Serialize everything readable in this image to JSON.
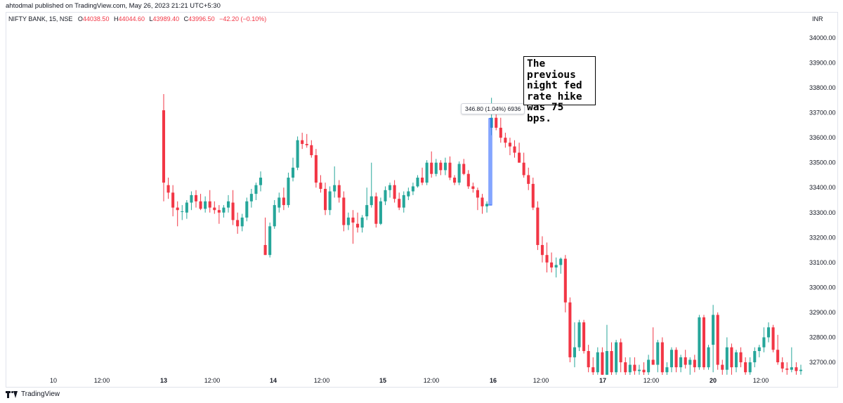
{
  "publisher_line": "ahtodmal published on TradingView.com, May 26, 2023 21:21 UTC+5:30",
  "legend": {
    "symbol": "NIFTY BANK, 15, NSE",
    "open_label": "O",
    "open": "44038.50",
    "high_label": "H",
    "high": "44044.60",
    "low_label": "L",
    "low": "43989.40",
    "close_label": "C",
    "close": "43996.50",
    "change": "−42.20 (−0.10%)"
  },
  "currency": "INR",
  "footer_brand": "TradingView",
  "annotation": {
    "lines": [
      "The previous",
      "night fed",
      "rate hike",
      "was 75 bps."
    ]
  },
  "measure": {
    "label": "346.80 (1.04%) 6936",
    "from": 33330,
    "to": 33677
  },
  "colors": {
    "up": "#26a69a",
    "down": "#f23645",
    "measure": "#2962ff"
  },
  "chart_data": {
    "type": "candlestick",
    "ylim": [
      32640,
      34150
    ],
    "y_ticks": [
      "34000.00",
      "33900.00",
      "33800.00",
      "33700.00",
      "33600.00",
      "33500.00",
      "33400.00",
      "33300.00",
      "33200.00",
      "33100.00",
      "33000.00",
      "32900.00",
      "32800.00",
      "32700.00"
    ],
    "x_ticks": [
      {
        "label": "10",
        "bold": false
      },
      {
        "label": "12:00",
        "bold": false
      },
      {
        "label": "13",
        "bold": true
      },
      {
        "label": "12:00",
        "bold": false
      },
      {
        "label": "14",
        "bold": true
      },
      {
        "label": "12:00",
        "bold": false
      },
      {
        "label": "15",
        "bold": true
      },
      {
        "label": "12:00",
        "bold": false
      },
      {
        "label": "16",
        "bold": true
      },
      {
        "label": "12:00",
        "bold": false
      },
      {
        "label": "17",
        "bold": true
      },
      {
        "label": "12:00",
        "bold": false
      },
      {
        "label": "20",
        "bold": true
      },
      {
        "label": "12:00",
        "bold": false
      }
    ],
    "candles": [
      {
        "o": 33710,
        "h": 33775,
        "l": 33345,
        "c": 33420
      },
      {
        "o": 33410,
        "h": 33440,
        "l": 33355,
        "c": 33380
      },
      {
        "o": 33380,
        "h": 33410,
        "l": 33285,
        "c": 33320
      },
      {
        "o": 33320,
        "h": 33345,
        "l": 33245,
        "c": 33310
      },
      {
        "o": 33305,
        "h": 33330,
        "l": 33270,
        "c": 33305
      },
      {
        "o": 33300,
        "h": 33350,
        "l": 33275,
        "c": 33340
      },
      {
        "o": 33340,
        "h": 33385,
        "l": 33310,
        "c": 33370
      },
      {
        "o": 33370,
        "h": 33390,
        "l": 33320,
        "c": 33345
      },
      {
        "o": 33345,
        "h": 33375,
        "l": 33310,
        "c": 33315
      },
      {
        "o": 33315,
        "h": 33365,
        "l": 33300,
        "c": 33345
      },
      {
        "o": 33345,
        "h": 33390,
        "l": 33300,
        "c": 33320
      },
      {
        "o": 33320,
        "h": 33345,
        "l": 33295,
        "c": 33310
      },
      {
        "o": 33310,
        "h": 33330,
        "l": 33255,
        "c": 33300
      },
      {
        "o": 33300,
        "h": 33330,
        "l": 33280,
        "c": 33320
      },
      {
        "o": 33320,
        "h": 33370,
        "l": 33300,
        "c": 33345
      },
      {
        "o": 33340,
        "h": 33390,
        "l": 33250,
        "c": 33270
      },
      {
        "o": 33270,
        "h": 33300,
        "l": 33215,
        "c": 33245
      },
      {
        "o": 33245,
        "h": 33295,
        "l": 33225,
        "c": 33280
      },
      {
        "o": 33280,
        "h": 33360,
        "l": 33265,
        "c": 33345
      },
      {
        "o": 33345,
        "h": 33395,
        "l": 33320,
        "c": 33375
      },
      {
        "o": 33375,
        "h": 33420,
        "l": 33350,
        "c": 33410
      },
      {
        "o": 33410,
        "h": 33465,
        "l": 33385,
        "c": 33440
      },
      {
        "o": 33170,
        "h": 33280,
        "l": 33130,
        "c": 33130
      },
      {
        "o": 33130,
        "h": 33260,
        "l": 33120,
        "c": 33245
      },
      {
        "o": 33245,
        "h": 33350,
        "l": 33235,
        "c": 33330
      },
      {
        "o": 33320,
        "h": 33380,
        "l": 33300,
        "c": 33360
      },
      {
        "o": 33360,
        "h": 33400,
        "l": 33310,
        "c": 33330
      },
      {
        "o": 33330,
        "h": 33460,
        "l": 33320,
        "c": 33440
      },
      {
        "o": 33440,
        "h": 33520,
        "l": 33425,
        "c": 33480
      },
      {
        "o": 33480,
        "h": 33605,
        "l": 33470,
        "c": 33590
      },
      {
        "o": 33590,
        "h": 33620,
        "l": 33555,
        "c": 33575
      },
      {
        "o": 33575,
        "h": 33615,
        "l": 33560,
        "c": 33570
      },
      {
        "o": 33570,
        "h": 33590,
        "l": 33520,
        "c": 33530
      },
      {
        "o": 33530,
        "h": 33555,
        "l": 33400,
        "c": 33420
      },
      {
        "o": 33420,
        "h": 33450,
        "l": 33380,
        "c": 33395
      },
      {
        "o": 33395,
        "h": 33420,
        "l": 33290,
        "c": 33310
      },
      {
        "o": 33310,
        "h": 33405,
        "l": 33290,
        "c": 33385
      },
      {
        "o": 33385,
        "h": 33485,
        "l": 33360,
        "c": 33410
      },
      {
        "o": 33410,
        "h": 33430,
        "l": 33340,
        "c": 33360
      },
      {
        "o": 33360,
        "h": 33385,
        "l": 33225,
        "c": 33250
      },
      {
        "o": 33250,
        "h": 33300,
        "l": 33230,
        "c": 33280
      },
      {
        "o": 33280,
        "h": 33310,
        "l": 33175,
        "c": 33260
      },
      {
        "o": 33255,
        "h": 33300,
        "l": 33220,
        "c": 33240
      },
      {
        "o": 33240,
        "h": 33290,
        "l": 33220,
        "c": 33280
      },
      {
        "o": 33285,
        "h": 33400,
        "l": 33270,
        "c": 33330
      },
      {
        "o": 33330,
        "h": 33500,
        "l": 33320,
        "c": 33365
      },
      {
        "o": 33365,
        "h": 33380,
        "l": 33240,
        "c": 33255
      },
      {
        "o": 33255,
        "h": 33360,
        "l": 33250,
        "c": 33345
      },
      {
        "o": 33345,
        "h": 33405,
        "l": 33330,
        "c": 33390
      },
      {
        "o": 33390,
        "h": 33420,
        "l": 33360,
        "c": 33410
      },
      {
        "o": 33410,
        "h": 33430,
        "l": 33340,
        "c": 33355
      },
      {
        "o": 33355,
        "h": 33380,
        "l": 33310,
        "c": 33320
      },
      {
        "o": 33320,
        "h": 33385,
        "l": 33300,
        "c": 33370
      },
      {
        "o": 33365,
        "h": 33400,
        "l": 33350,
        "c": 33385
      },
      {
        "o": 33385,
        "h": 33420,
        "l": 33370,
        "c": 33405
      },
      {
        "o": 33405,
        "h": 33450,
        "l": 33400,
        "c": 33440
      },
      {
        "o": 33440,
        "h": 33480,
        "l": 33410,
        "c": 33420
      },
      {
        "o": 33420,
        "h": 33510,
        "l": 33410,
        "c": 33500
      },
      {
        "o": 33500,
        "h": 33545,
        "l": 33440,
        "c": 33455
      },
      {
        "o": 33455,
        "h": 33515,
        "l": 33445,
        "c": 33500
      },
      {
        "o": 33500,
        "h": 33510,
        "l": 33450,
        "c": 33470
      },
      {
        "o": 33470,
        "h": 33520,
        "l": 33450,
        "c": 33500
      },
      {
        "o": 33500,
        "h": 33525,
        "l": 33430,
        "c": 33440
      },
      {
        "o": 33440,
        "h": 33450,
        "l": 33410,
        "c": 33420
      },
      {
        "o": 33420,
        "h": 33505,
        "l": 33410,
        "c": 33495
      },
      {
        "o": 33495,
        "h": 33515,
        "l": 33450,
        "c": 33455
      },
      {
        "o": 33455,
        "h": 33470,
        "l": 33395,
        "c": 33405
      },
      {
        "o": 33405,
        "h": 33420,
        "l": 33380,
        "c": 33395
      },
      {
        "o": 33390,
        "h": 33400,
        "l": 33310,
        "c": 33360
      },
      {
        "o": 33360,
        "h": 33375,
        "l": 33295,
        "c": 33325
      },
      {
        "o": 33325,
        "h": 33345,
        "l": 33300,
        "c": 33335
      },
      {
        "o": 33640,
        "h": 33760,
        "l": 33610,
        "c": 33680
      },
      {
        "o": 33680,
        "h": 33735,
        "l": 33630,
        "c": 33640
      },
      {
        "o": 33640,
        "h": 33680,
        "l": 33580,
        "c": 33600
      },
      {
        "o": 33600,
        "h": 33620,
        "l": 33560,
        "c": 33580
      },
      {
        "o": 33580,
        "h": 33600,
        "l": 33530,
        "c": 33565
      },
      {
        "o": 33565,
        "h": 33590,
        "l": 33520,
        "c": 33540
      },
      {
        "o": 33540,
        "h": 33580,
        "l": 33500,
        "c": 33500
      },
      {
        "o": 33500,
        "h": 33540,
        "l": 33440,
        "c": 33450
      },
      {
        "o": 33450,
        "h": 33480,
        "l": 33390,
        "c": 33415
      },
      {
        "o": 33415,
        "h": 33440,
        "l": 33310,
        "c": 33320
      },
      {
        "o": 33320,
        "h": 33345,
        "l": 33150,
        "c": 33170
      },
      {
        "o": 33170,
        "h": 33205,
        "l": 33100,
        "c": 33130
      },
      {
        "o": 33130,
        "h": 33180,
        "l": 33060,
        "c": 33100
      },
      {
        "o": 33100,
        "h": 33140,
        "l": 33060,
        "c": 33080
      },
      {
        "o": 33080,
        "h": 33120,
        "l": 33040,
        "c": 33090
      },
      {
        "o": 33090,
        "h": 33120,
        "l": 33055,
        "c": 33115
      },
      {
        "o": 33115,
        "h": 33130,
        "l": 32900,
        "c": 32940
      },
      {
        "o": 32940,
        "h": 32960,
        "l": 32700,
        "c": 32720
      },
      {
        "o": 32720,
        "h": 32860,
        "l": 32680,
        "c": 32760
      },
      {
        "o": 32760,
        "h": 32870,
        "l": 32745,
        "c": 32860
      },
      {
        "o": 32860,
        "h": 32870,
        "l": 32735,
        "c": 32745
      },
      {
        "o": 32745,
        "h": 32770,
        "l": 32660,
        "c": 32680
      },
      {
        "o": 32680,
        "h": 32720,
        "l": 32640,
        "c": 32660
      },
      {
        "o": 32660,
        "h": 32760,
        "l": 32650,
        "c": 32740
      },
      {
        "o": 32740,
        "h": 32760,
        "l": 32640,
        "c": 32650
      },
      {
        "o": 32650,
        "h": 32850,
        "l": 32645,
        "c": 32745
      },
      {
        "o": 32745,
        "h": 32780,
        "l": 32640,
        "c": 32660
      },
      {
        "o": 32660,
        "h": 32790,
        "l": 32650,
        "c": 32780
      },
      {
        "o": 32780,
        "h": 32795,
        "l": 32660,
        "c": 32700
      },
      {
        "o": 32700,
        "h": 32720,
        "l": 32640,
        "c": 32660
      },
      {
        "o": 32660,
        "h": 32720,
        "l": 32645,
        "c": 32690
      },
      {
        "o": 32690,
        "h": 32720,
        "l": 32650,
        "c": 32665
      },
      {
        "o": 32665,
        "h": 32690,
        "l": 32650,
        "c": 32670
      },
      {
        "o": 32670,
        "h": 32700,
        "l": 32640,
        "c": 32660
      },
      {
        "o": 32660,
        "h": 32730,
        "l": 32640,
        "c": 32710
      },
      {
        "o": 32710,
        "h": 32840,
        "l": 32690,
        "c": 32690
      },
      {
        "o": 32690,
        "h": 32790,
        "l": 32660,
        "c": 32780
      },
      {
        "o": 32780,
        "h": 32800,
        "l": 32640,
        "c": 32660
      },
      {
        "o": 32660,
        "h": 32700,
        "l": 32640,
        "c": 32680
      },
      {
        "o": 32680,
        "h": 32760,
        "l": 32660,
        "c": 32750
      },
      {
        "o": 32750,
        "h": 32760,
        "l": 32660,
        "c": 32680
      },
      {
        "o": 32680,
        "h": 32730,
        "l": 32660,
        "c": 32720
      },
      {
        "o": 32720,
        "h": 32750,
        "l": 32675,
        "c": 32690
      },
      {
        "o": 32690,
        "h": 32720,
        "l": 32650,
        "c": 32710
      },
      {
        "o": 32710,
        "h": 32730,
        "l": 32660,
        "c": 32680
      },
      {
        "o": 32680,
        "h": 32890,
        "l": 32670,
        "c": 32880
      },
      {
        "o": 32880,
        "h": 32890,
        "l": 32670,
        "c": 32680
      },
      {
        "o": 32680,
        "h": 32770,
        "l": 32670,
        "c": 32760
      },
      {
        "o": 32770,
        "h": 32930,
        "l": 32660,
        "c": 32890
      },
      {
        "o": 32890,
        "h": 32900,
        "l": 32670,
        "c": 32690
      },
      {
        "o": 32690,
        "h": 32710,
        "l": 32650,
        "c": 32670
      },
      {
        "o": 32670,
        "h": 32800,
        "l": 32650,
        "c": 32760
      },
      {
        "o": 32760,
        "h": 32775,
        "l": 32650,
        "c": 32680
      },
      {
        "o": 32680,
        "h": 32750,
        "l": 32660,
        "c": 32740
      },
      {
        "o": 32740,
        "h": 32760,
        "l": 32680,
        "c": 32700
      },
      {
        "o": 32700,
        "h": 32720,
        "l": 32650,
        "c": 32660
      },
      {
        "o": 32660,
        "h": 32720,
        "l": 32650,
        "c": 32700
      },
      {
        "o": 32700,
        "h": 32760,
        "l": 32680,
        "c": 32745
      },
      {
        "o": 32745,
        "h": 32770,
        "l": 32720,
        "c": 32760
      },
      {
        "o": 32760,
        "h": 32840,
        "l": 32740,
        "c": 32800
      },
      {
        "o": 32800,
        "h": 32860,
        "l": 32780,
        "c": 32840
      },
      {
        "o": 32840,
        "h": 32850,
        "l": 32740,
        "c": 32750
      },
      {
        "o": 32750,
        "h": 32810,
        "l": 32690,
        "c": 32700
      },
      {
        "o": 32700,
        "h": 32720,
        "l": 32660,
        "c": 32675
      },
      {
        "o": 32675,
        "h": 32700,
        "l": 32650,
        "c": 32670
      },
      {
        "o": 32670,
        "h": 32760,
        "l": 32660,
        "c": 32680
      },
      {
        "o": 32680,
        "h": 32700,
        "l": 32650,
        "c": 32665
      },
      {
        "o": 32665,
        "h": 32690,
        "l": 32650,
        "c": 32670
      }
    ]
  }
}
